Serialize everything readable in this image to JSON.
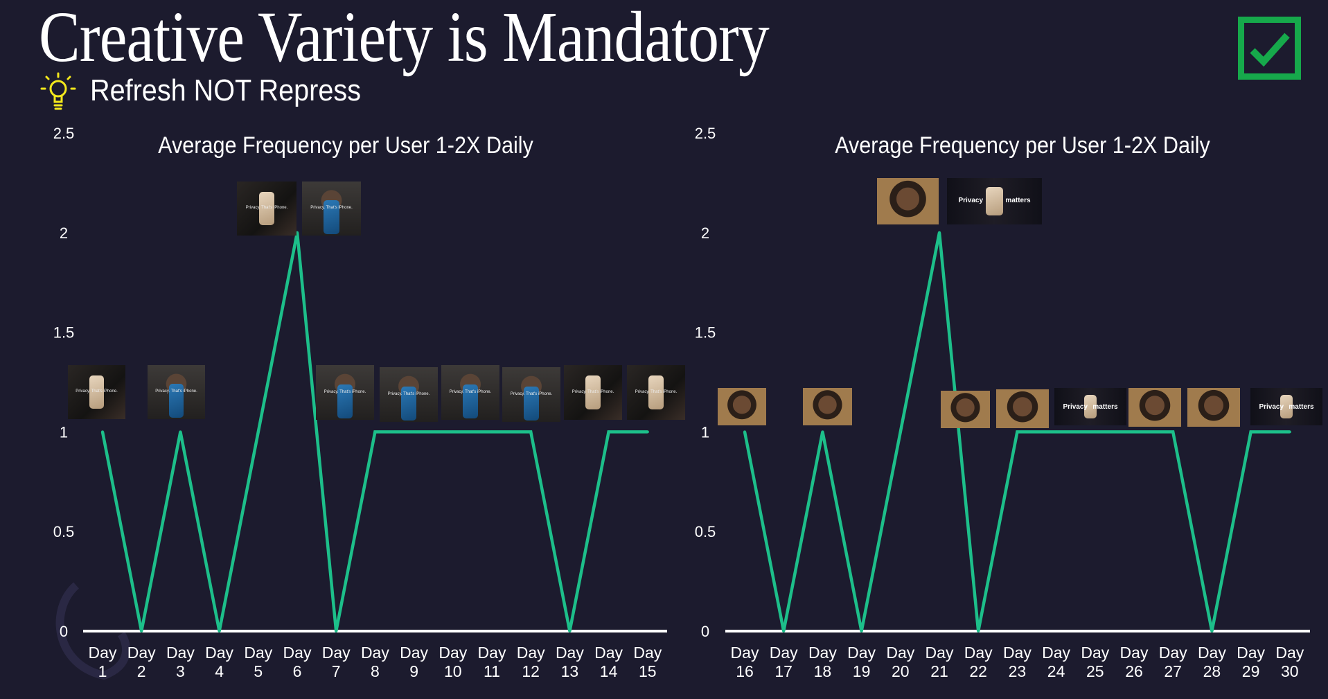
{
  "header": {
    "title": "Creative Variety is Mandatory",
    "subtitle": "Refresh NOT Repress",
    "icons": [
      "lightbulb-icon",
      "checkbox-checked-icon"
    ]
  },
  "colors": {
    "background": "#1c1b2e",
    "line": "#1dbf8a",
    "check": "#16a94b",
    "bulb": "#f3e81c"
  },
  "thumbnails": {
    "caption": "Privacy. That's iPhone.",
    "word1": "Privacy",
    "word2": "matters"
  },
  "chart_data": [
    {
      "type": "line",
      "title": "Average Frequency per User 1-2X Daily",
      "categories": [
        "Day 1",
        "Day 2",
        "Day 3",
        "Day 4",
        "Day 5",
        "Day 6",
        "Day 7",
        "Day 8",
        "Day 9",
        "Day 10",
        "Day 11",
        "Day 12",
        "Day 13",
        "Day 14",
        "Day 15"
      ],
      "values": [
        1,
        0,
        1,
        0,
        1,
        2,
        0,
        1,
        1,
        1,
        1,
        1,
        0,
        1,
        1
      ],
      "yticks": [
        "0",
        "0.5",
        "1",
        "1.5",
        "2",
        "2.5"
      ],
      "ylim": [
        0,
        2.5
      ],
      "grid": false
    },
    {
      "type": "line",
      "title": "Average Frequency per User 1-2X Daily",
      "categories": [
        "Day 16",
        "Day 17",
        "Day 18",
        "Day 19",
        "Day 20",
        "Day 21",
        "Day 22",
        "Day 23",
        "Day 24",
        "Day 25",
        "Day 26",
        "Day 27",
        "Day 28",
        "Day 29",
        "Day 30"
      ],
      "values": [
        1,
        0,
        1,
        0,
        1,
        2,
        0,
        1,
        1,
        1,
        1,
        1,
        0,
        1,
        1
      ],
      "yticks": [
        "0",
        "0.5",
        "1",
        "1.5",
        "2",
        "2.5"
      ],
      "ylim": [
        0,
        2.5
      ],
      "grid": false
    }
  ]
}
